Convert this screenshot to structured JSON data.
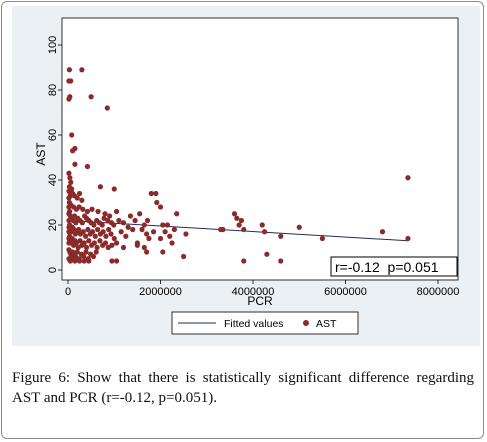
{
  "chart_data": {
    "type": "scatter",
    "title": "",
    "xlabel": "PCR",
    "ylabel": "AST",
    "xlim": [
      0,
      8000000
    ],
    "ylim": [
      0,
      100
    ],
    "x_ticks": [
      0,
      2000000,
      4000000,
      6000000,
      8000000
    ],
    "y_ticks": [
      0,
      20,
      40,
      60,
      80,
      100
    ],
    "x_tick_labels": [
      "0",
      "2000000",
      "4000000",
      "6000000",
      "8000000"
    ],
    "y_tick_labels": [
      "0",
      "20",
      "40",
      "60",
      "80",
      "100"
    ],
    "grid": false,
    "legend_position": "bottom",
    "annotation": "r=-0.12  p=0.051",
    "series": [
      {
        "name": "AST",
        "kind": "scatter",
        "color": "#8b2a2a",
        "points": [
          [
            30000,
            89
          ],
          [
            60000,
            84
          ],
          [
            20000,
            84
          ],
          [
            40000,
            77
          ],
          [
            20000,
            76
          ],
          [
            300000,
            89
          ],
          [
            500000,
            77
          ],
          [
            850000,
            72
          ],
          [
            80000,
            60
          ],
          [
            100000,
            53
          ],
          [
            150000,
            54
          ],
          [
            150000,
            47
          ],
          [
            420000,
            46
          ],
          [
            20000,
            43
          ],
          [
            40000,
            41
          ],
          [
            60000,
            39
          ],
          [
            30000,
            37
          ],
          [
            80000,
            36
          ],
          [
            20000,
            35
          ],
          [
            50000,
            33
          ],
          [
            100000,
            34
          ],
          [
            140000,
            33
          ],
          [
            200000,
            32
          ],
          [
            250000,
            34
          ],
          [
            300000,
            31
          ],
          [
            700000,
            37
          ],
          [
            1000000,
            36
          ],
          [
            30000,
            30
          ],
          [
            60000,
            29
          ],
          [
            120000,
            28
          ],
          [
            180000,
            27
          ],
          [
            240000,
            28
          ],
          [
            320000,
            27
          ],
          [
            420000,
            26
          ],
          [
            520000,
            27
          ],
          [
            650000,
            26
          ],
          [
            800000,
            25
          ],
          [
            900000,
            24
          ],
          [
            1050000,
            26
          ],
          [
            20000,
            25
          ],
          [
            50000,
            24
          ],
          [
            80000,
            23
          ],
          [
            110000,
            22
          ],
          [
            140000,
            24
          ],
          [
            170000,
            21
          ],
          [
            210000,
            23
          ],
          [
            260000,
            22
          ],
          [
            310000,
            21
          ],
          [
            360000,
            24
          ],
          [
            400000,
            23
          ],
          [
            450000,
            22
          ],
          [
            500000,
            21
          ],
          [
            560000,
            20
          ],
          [
            620000,
            22
          ],
          [
            680000,
            21
          ],
          [
            740000,
            20
          ],
          [
            780000,
            23
          ],
          [
            860000,
            22
          ],
          [
            940000,
            21
          ],
          [
            990000,
            20
          ],
          [
            1100000,
            22
          ],
          [
            1200000,
            21
          ],
          [
            1300000,
            19
          ],
          [
            20000,
            19
          ],
          [
            45000,
            18
          ],
          [
            70000,
            17
          ],
          [
            95000,
            19
          ],
          [
            130000,
            18
          ],
          [
            160000,
            16
          ],
          [
            190000,
            17
          ],
          [
            230000,
            18
          ],
          [
            270000,
            16
          ],
          [
            330000,
            17
          ],
          [
            380000,
            15
          ],
          [
            430000,
            18
          ],
          [
            480000,
            16
          ],
          [
            530000,
            17
          ],
          [
            590000,
            15
          ],
          [
            640000,
            18
          ],
          [
            700000,
            16
          ],
          [
            760000,
            17
          ],
          [
            820000,
            15
          ],
          [
            880000,
            18
          ],
          [
            930000,
            16
          ],
          [
            1000000,
            14
          ],
          [
            1150000,
            17
          ],
          [
            1250000,
            15
          ],
          [
            1400000,
            18
          ],
          [
            20000,
            14
          ],
          [
            40000,
            13
          ],
          [
            65000,
            12
          ],
          [
            90000,
            14
          ],
          [
            120000,
            11
          ],
          [
            150000,
            13
          ],
          [
            180000,
            12
          ],
          [
            220000,
            10
          ],
          [
            260000,
            13
          ],
          [
            300000,
            11
          ],
          [
            350000,
            12
          ],
          [
            400000,
            10
          ],
          [
            450000,
            13
          ],
          [
            510000,
            11
          ],
          [
            570000,
            12
          ],
          [
            630000,
            10
          ],
          [
            690000,
            13
          ],
          [
            750000,
            11
          ],
          [
            810000,
            12
          ],
          [
            870000,
            10
          ],
          [
            950000,
            11
          ],
          [
            1050000,
            12
          ],
          [
            1200000,
            10
          ],
          [
            20000,
            9
          ],
          [
            40000,
            8
          ],
          [
            60000,
            7
          ],
          [
            80000,
            6
          ],
          [
            100000,
            8
          ],
          [
            130000,
            7
          ],
          [
            160000,
            6
          ],
          [
            200000,
            8
          ],
          [
            240000,
            5
          ],
          [
            290000,
            7
          ],
          [
            340000,
            6
          ],
          [
            390000,
            8
          ],
          [
            440000,
            5
          ],
          [
            490000,
            7
          ],
          [
            550000,
            6
          ],
          [
            610000,
            8
          ],
          [
            20000,
            5
          ],
          [
            50000,
            4
          ],
          [
            90000,
            5
          ],
          [
            150000,
            4
          ],
          [
            250000,
            4
          ],
          [
            350000,
            4
          ],
          [
            450000,
            4
          ],
          [
            950000,
            4
          ],
          [
            1050000,
            4
          ],
          [
            20000,
            22
          ],
          [
            20000,
            28
          ],
          [
            20000,
            32
          ],
          [
            20000,
            17
          ],
          [
            20000,
            12
          ],
          [
            35000,
            26
          ],
          [
            35000,
            20
          ],
          [
            35000,
            15
          ],
          [
            1600000,
            18
          ],
          [
            1650000,
            20
          ],
          [
            1700000,
            16
          ],
          [
            1720000,
            22
          ],
          [
            1750000,
            14
          ],
          [
            1800000,
            34
          ],
          [
            1850000,
            17
          ],
          [
            1900000,
            34
          ],
          [
            1920000,
            30
          ],
          [
            2000000,
            28
          ],
          [
            2050000,
            20
          ],
          [
            2100000,
            17
          ],
          [
            1550000,
            25
          ],
          [
            1500000,
            12
          ],
          [
            1650000,
            10
          ],
          [
            1700000,
            8
          ],
          [
            1450000,
            22
          ],
          [
            1350000,
            24
          ],
          [
            1500000,
            11
          ],
          [
            2200000,
            15
          ],
          [
            2250000,
            12
          ],
          [
            2300000,
            18
          ],
          [
            2350000,
            25
          ],
          [
            2550000,
            16
          ],
          [
            2500000,
            6
          ],
          [
            2050000,
            8
          ],
          [
            2150000,
            20
          ],
          [
            2000000,
            14
          ],
          [
            3300000,
            18
          ],
          [
            3350000,
            18
          ],
          [
            3600000,
            25
          ],
          [
            3650000,
            23
          ],
          [
            3700000,
            20
          ],
          [
            3750000,
            22
          ],
          [
            3800000,
            18
          ],
          [
            3800000,
            4
          ],
          [
            4200000,
            20
          ],
          [
            4250000,
            17
          ],
          [
            4300000,
            7
          ],
          [
            4600000,
            15
          ],
          [
            4600000,
            4
          ],
          [
            5000000,
            19
          ],
          [
            5500000,
            14
          ],
          [
            6800000,
            17
          ],
          [
            7350000,
            41
          ],
          [
            7350000,
            14
          ]
        ]
      },
      {
        "name": "Fitted values",
        "kind": "line",
        "color": "#1f2d5a",
        "x": [
          0,
          7350000
        ],
        "y": [
          22,
          13
        ]
      }
    ]
  },
  "caption": {
    "label": "Figure 6:",
    "text": "Show that there is statistically significant difference regarding AST and PCR (r=-0.12, p=0.051)."
  }
}
